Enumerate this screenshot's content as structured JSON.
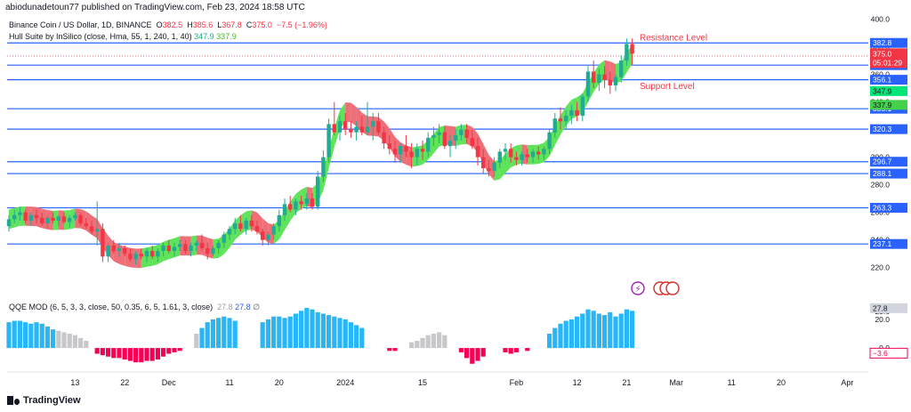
{
  "header": {
    "publisher": "abiodunadetoun77 published on TradingView.com, Feb 23, 2024 18:58 UTC"
  },
  "legend": {
    "symbol": "Binance Coin / US Dollar, 1D, BINANCE",
    "o_label": "O",
    "o": "382.5",
    "h_label": "H",
    "h": "385.6",
    "l_label": "L",
    "l": "367.8",
    "c_label": "C",
    "c": "375.0",
    "change": "−7.5 (−1.96%)",
    "hull_label": "Hull Suite by InSilico (close, Hma, 55, 1, 240, 1, 40)",
    "hull_v1": "347.9",
    "hull_v2": "337.9",
    "qqe_label": "QQE MOD (6, 5, 3, 3, close, 50, 0.35, 6, 5, 1.61, 3, close)",
    "qqe_v1": "27.8",
    "qqe_v2": "27.8"
  },
  "colors": {
    "up": "#22ab94",
    "down": "#f23645",
    "level": "#2962ff",
    "hull_up": "#5fe35a",
    "hull_down": "#ef6f78",
    "qqe_up": "#29b6f6",
    "qqe_down": "#f50057",
    "qqe_neutral": "#c8c8cc",
    "annotation": "#f23645"
  },
  "chart_data": {
    "type": "candlestick",
    "title": "Binance Coin / US Dollar, 1D, BINANCE",
    "price_axis": {
      "ticks": [
        "400.0",
        "380.0",
        "360.0",
        "340.0",
        "320.0",
        "300.0",
        "280.0",
        "260.0",
        "240.0",
        "220.0"
      ],
      "range": [
        214,
        401
      ]
    },
    "x_axis": {
      "ticks": [
        {
          "label": "13",
          "day": 13
        },
        {
          "label": "22",
          "day": 22
        },
        {
          "label": "Dec",
          "day": 30
        },
        {
          "label": "11",
          "day": 41
        },
        {
          "label": "20",
          "day": 50
        },
        {
          "label": "2024",
          "day": 62
        },
        {
          "label": "15",
          "day": 76
        },
        {
          "label": "Feb",
          "day": 93
        },
        {
          "label": "12",
          "day": 104
        },
        {
          "label": "21",
          "day": 113
        },
        {
          "label": "Mar",
          "day": 122
        },
        {
          "label": "11",
          "day": 132
        },
        {
          "label": "20",
          "day": 141
        },
        {
          "label": "Apr",
          "day": 153
        }
      ],
      "first_day": 1,
      "last_day": 157
    },
    "levels": [
      {
        "value": 382.8,
        "label": "382.8"
      },
      {
        "value": 366.7,
        "label": "366.7"
      },
      {
        "value": 356.1,
        "label": "356.1"
      },
      {
        "value": 335.1,
        "label": "335.1"
      },
      {
        "value": 320.3,
        "label": "320.3"
      },
      {
        "value": 296.7,
        "label": "296.7"
      },
      {
        "value": 288.1,
        "label": "288.1"
      },
      {
        "value": 263.3,
        "label": "263.3"
      },
      {
        "value": 237.1,
        "label": "237.1"
      }
    ],
    "price_badges": [
      {
        "value": 375.0,
        "label": "375.0",
        "sub": "05:01:29",
        "kind": "last"
      },
      {
        "value": 347.9,
        "label": "347.9",
        "kind": "hull1"
      },
      {
        "value": 337.9,
        "label": "337.9",
        "kind": "hull2"
      }
    ],
    "annotations": [
      {
        "text": "Resistance Level",
        "price": 387
      },
      {
        "text": "Support Level",
        "price": 352
      }
    ],
    "candles": [
      [
        250,
        258,
        246,
        255
      ],
      [
        255,
        262,
        252,
        258
      ],
      [
        258,
        264,
        254,
        260
      ],
      [
        260,
        262,
        252,
        254
      ],
      [
        254,
        260,
        250,
        258
      ],
      [
        258,
        262,
        252,
        256
      ],
      [
        256,
        260,
        250,
        252
      ],
      [
        252,
        258,
        248,
        256
      ],
      [
        256,
        260,
        252,
        254
      ],
      [
        254,
        258,
        250,
        257
      ],
      [
        257,
        260,
        252,
        253
      ],
      [
        253,
        258,
        249,
        256
      ],
      [
        256,
        260,
        254,
        258
      ],
      [
        258,
        260,
        250,
        252
      ],
      [
        252,
        256,
        248,
        250
      ],
      [
        250,
        254,
        244,
        246
      ],
      [
        246,
        268,
        236,
        248
      ],
      [
        248,
        252,
        224,
        228
      ],
      [
        228,
        238,
        224,
        236
      ],
      [
        236,
        240,
        230,
        232
      ],
      [
        232,
        238,
        228,
        234
      ],
      [
        234,
        236,
        228,
        230
      ],
      [
        230,
        234,
        224,
        226
      ],
      [
        226,
        232,
        222,
        230
      ],
      [
        230,
        234,
        226,
        228
      ],
      [
        228,
        234,
        224,
        232
      ],
      [
        232,
        236,
        226,
        228
      ],
      [
        228,
        234,
        224,
        232
      ],
      [
        232,
        238,
        228,
        236
      ],
      [
        236,
        240,
        230,
        232
      ],
      [
        232,
        238,
        228,
        235
      ],
      [
        235,
        240,
        232,
        237
      ],
      [
        237,
        240,
        230,
        232
      ],
      [
        232,
        238,
        228,
        236
      ],
      [
        236,
        240,
        232,
        238
      ],
      [
        238,
        244,
        232,
        234
      ],
      [
        234,
        238,
        226,
        230
      ],
      [
        230,
        236,
        228,
        234
      ],
      [
        234,
        240,
        230,
        238
      ],
      [
        238,
        246,
        234,
        244
      ],
      [
        244,
        250,
        240,
        248
      ],
      [
        248,
        256,
        244,
        252
      ],
      [
        252,
        258,
        246,
        248
      ],
      [
        248,
        256,
        244,
        254
      ],
      [
        254,
        258,
        246,
        250
      ],
      [
        250,
        254,
        244,
        246
      ],
      [
        246,
        248,
        236,
        240
      ],
      [
        240,
        246,
        236,
        244
      ],
      [
        244,
        252,
        240,
        250
      ],
      [
        250,
        262,
        246,
        258
      ],
      [
        258,
        270,
        254,
        266
      ],
      [
        266,
        272,
        260,
        262
      ],
      [
        262,
        270,
        258,
        268
      ],
      [
        268,
        272,
        262,
        266
      ],
      [
        266,
        274,
        262,
        270
      ],
      [
        270,
        274,
        262,
        264
      ],
      [
        264,
        290,
        262,
        286
      ],
      [
        286,
        305,
        282,
        300
      ],
      [
        300,
        328,
        296,
        324
      ],
      [
        324,
        340,
        316,
        318
      ],
      [
        318,
        330,
        312,
        326
      ],
      [
        326,
        332,
        316,
        320
      ],
      [
        320,
        326,
        314,
        318
      ],
      [
        318,
        326,
        312,
        322
      ],
      [
        322,
        330,
        316,
        318
      ],
      [
        318,
        340,
        316,
        322
      ],
      [
        322,
        332,
        312,
        326
      ],
      [
        326,
        332,
        316,
        318
      ],
      [
        318,
        322,
        306,
        310
      ],
      [
        310,
        316,
        302,
        306
      ],
      [
        306,
        312,
        296,
        302
      ],
      [
        302,
        310,
        296,
        308
      ],
      [
        308,
        316,
        300,
        304
      ],
      [
        304,
        310,
        292,
        300
      ],
      [
        300,
        310,
        294,
        306
      ],
      [
        306,
        312,
        298,
        304
      ],
      [
        304,
        318,
        300,
        314
      ],
      [
        314,
        322,
        308,
        316
      ],
      [
        316,
        324,
        310,
        318
      ],
      [
        318,
        322,
        306,
        308
      ],
      [
        308,
        316,
        300,
        312
      ],
      [
        312,
        320,
        306,
        316
      ],
      [
        316,
        324,
        312,
        320
      ],
      [
        320,
        324,
        310,
        314
      ],
      [
        314,
        320,
        306,
        308
      ],
      [
        308,
        314,
        294,
        300
      ],
      [
        300,
        306,
        288,
        292
      ],
      [
        292,
        298,
        286,
        290
      ],
      [
        290,
        300,
        286,
        296
      ],
      [
        296,
        306,
        292,
        304
      ],
      [
        304,
        310,
        298,
        306
      ],
      [
        306,
        310,
        296,
        300
      ],
      [
        300,
        304,
        294,
        298
      ],
      [
        298,
        304,
        294,
        302
      ],
      [
        302,
        306,
        296,
        300
      ],
      [
        300,
        306,
        296,
        304
      ],
      [
        304,
        308,
        298,
        302
      ],
      [
        302,
        308,
        298,
        306
      ],
      [
        306,
        320,
        302,
        318
      ],
      [
        318,
        332,
        314,
        328
      ],
      [
        328,
        336,
        320,
        326
      ],
      [
        326,
        334,
        320,
        330
      ],
      [
        330,
        338,
        324,
        334
      ],
      [
        334,
        340,
        326,
        330
      ],
      [
        330,
        346,
        326,
        344
      ],
      [
        344,
        366,
        340,
        362
      ],
      [
        362,
        370,
        350,
        354
      ],
      [
        354,
        364,
        348,
        360
      ],
      [
        360,
        366,
        350,
        356
      ],
      [
        356,
        362,
        346,
        352
      ],
      [
        352,
        360,
        348,
        358
      ],
      [
        358,
        374,
        354,
        370
      ],
      [
        370,
        386,
        366,
        382
      ],
      [
        382,
        386,
        367,
        375
      ]
    ],
    "hull": {
      "period": 55,
      "segments_note": "color by slope: up = hull_up, down = hull_down"
    },
    "qqe": {
      "title": "QQE MOD (6, 5, 3, 3, close, 50, 0.35, 6, 5, 1.61, 3, close)",
      "ticks": [
        "27.8",
        "25.6",
        "20.0",
        "0.0",
        "-3.6"
      ],
      "range": [
        -13,
        33
      ],
      "badges": [
        {
          "value": 27.8,
          "label": "27.8",
          "kind": "plain"
        },
        {
          "value": -3.6,
          "label": "−3.6",
          "kind": "neg"
        }
      ],
      "bars": [
        [
          18,
          "u"
        ],
        [
          19,
          "u"
        ],
        [
          19,
          "u"
        ],
        [
          18,
          "u"
        ],
        [
          17,
          "u"
        ],
        [
          18,
          "u"
        ],
        [
          17,
          "u"
        ],
        [
          15,
          "u"
        ],
        [
          13,
          "u"
        ],
        [
          12,
          "n"
        ],
        [
          11,
          "n"
        ],
        [
          10,
          "n"
        ],
        [
          9,
          "n"
        ],
        [
          7,
          "n"
        ],
        [
          5,
          "n"
        ],
        [
          0,
          "x"
        ],
        [
          -4,
          "d"
        ],
        [
          -5,
          "d"
        ],
        [
          -6,
          "d"
        ],
        [
          -7,
          "d"
        ],
        [
          -7,
          "d"
        ],
        [
          -8,
          "d"
        ],
        [
          -9,
          "d"
        ],
        [
          -10,
          "d"
        ],
        [
          -10,
          "d"
        ],
        [
          -9,
          "d"
        ],
        [
          -9,
          "d"
        ],
        [
          -8,
          "d"
        ],
        [
          -6,
          "d"
        ],
        [
          -4,
          "d"
        ],
        [
          -3,
          "d"
        ],
        [
          -2,
          "d"
        ],
        [
          0,
          "x"
        ],
        [
          0,
          "x"
        ],
        [
          10,
          "n"
        ],
        [
          14,
          "u"
        ],
        [
          18,
          "u"
        ],
        [
          20,
          "u"
        ],
        [
          21,
          "u"
        ],
        [
          22,
          "u"
        ],
        [
          21,
          "u"
        ],
        [
          19,
          "u"
        ],
        [
          0,
          "x"
        ],
        [
          0,
          "x"
        ],
        [
          0,
          "x"
        ],
        [
          0,
          "x"
        ],
        [
          18,
          "u"
        ],
        [
          20,
          "u"
        ],
        [
          22,
          "u"
        ],
        [
          22,
          "u"
        ],
        [
          21,
          "u"
        ],
        [
          22,
          "u"
        ],
        [
          24,
          "u"
        ],
        [
          26,
          "u"
        ],
        [
          28,
          "u"
        ],
        [
          27,
          "u"
        ],
        [
          25,
          "u"
        ],
        [
          24,
          "u"
        ],
        [
          23,
          "u"
        ],
        [
          22,
          "u"
        ],
        [
          21,
          "u"
        ],
        [
          20,
          "u"
        ],
        [
          18,
          "u"
        ],
        [
          16,
          "u"
        ],
        [
          14,
          "u"
        ],
        [
          0,
          "x"
        ],
        [
          0,
          "x"
        ],
        [
          0,
          "x"
        ],
        [
          0,
          "x"
        ],
        [
          -2,
          "d"
        ],
        [
          -2,
          "d"
        ],
        [
          0,
          "x"
        ],
        [
          0,
          "x"
        ],
        [
          4,
          "n"
        ],
        [
          5,
          "n"
        ],
        [
          7,
          "n"
        ],
        [
          9,
          "n"
        ],
        [
          10,
          "n"
        ],
        [
          11,
          "n"
        ],
        [
          9,
          "n"
        ],
        [
          0,
          "x"
        ],
        [
          0,
          "x"
        ],
        [
          -3,
          "d"
        ],
        [
          -7,
          "d"
        ],
        [
          -11,
          "d"
        ],
        [
          -9,
          "d"
        ],
        [
          -6,
          "d"
        ],
        [
          0,
          "x"
        ],
        [
          0,
          "x"
        ],
        [
          0,
          "x"
        ],
        [
          -3,
          "d"
        ],
        [
          -4,
          "d"
        ],
        [
          -3,
          "d"
        ],
        [
          0,
          "x"
        ],
        [
          -2,
          "d"
        ],
        [
          0,
          "x"
        ],
        [
          0,
          "x"
        ],
        [
          0,
          "x"
        ],
        [
          10,
          "u"
        ],
        [
          14,
          "u"
        ],
        [
          17,
          "u"
        ],
        [
          19,
          "u"
        ],
        [
          20,
          "u"
        ],
        [
          22,
          "u"
        ],
        [
          24,
          "u"
        ],
        [
          27,
          "u"
        ],
        [
          26,
          "u"
        ],
        [
          24,
          "u"
        ],
        [
          23,
          "u"
        ],
        [
          25,
          "u"
        ],
        [
          22,
          "u"
        ],
        [
          24,
          "u"
        ],
        [
          27,
          "u"
        ],
        [
          26,
          "u"
        ]
      ]
    }
  },
  "footer": {
    "brand": "TradingView"
  }
}
